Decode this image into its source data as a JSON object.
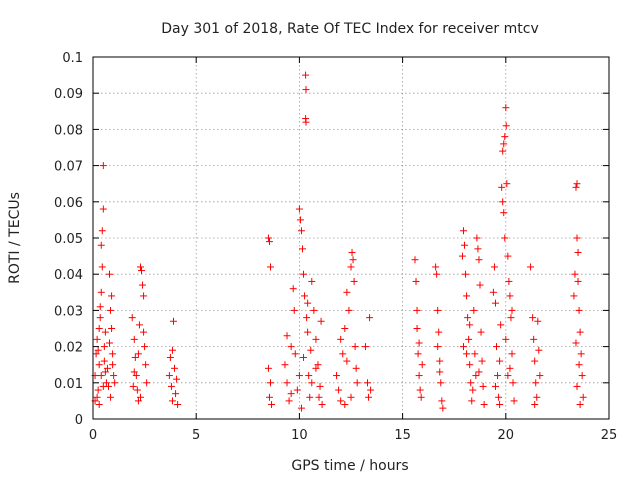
{
  "chart_data": {
    "type": "scatter",
    "title": "Day 301 of 2018, Rate Of TEC Index for receiver mtcv",
    "xlabel": "GPS time / hours",
    "ylabel": "ROTI / TECUs",
    "xlim": [
      0,
      25
    ],
    "ylim": [
      0,
      0.1
    ],
    "xticks": [
      0,
      5,
      10,
      15,
      20,
      25
    ],
    "yticks": [
      0,
      0.01,
      0.02,
      0.03,
      0.04,
      0.05,
      0.06,
      0.07,
      0.08,
      0.09,
      0.1
    ],
    "xtick_labels": [
      "0",
      "5",
      "10",
      "15",
      "20",
      "25"
    ],
    "ytick_labels": [
      "0",
      "0.01",
      "0.02",
      "0.03",
      "0.04",
      "0.05",
      "0.06",
      "0.07",
      "0.08",
      "0.09",
      "0.1"
    ],
    "grid": true,
    "marker": "plus",
    "color": "#ff0000",
    "series": [
      {
        "name": "ROTI",
        "points": [
          [
            0.1,
            0.012
          ],
          [
            0.15,
            0.018
          ],
          [
            0.2,
            0.022
          ],
          [
            0.25,
            0.008
          ],
          [
            0.3,
            0.015
          ],
          [
            0.35,
            0.028
          ],
          [
            0.4,
            0.035
          ],
          [
            0.45,
            0.042
          ],
          [
            0.5,
            0.07
          ],
          [
            0.5,
            0.058
          ],
          [
            0.45,
            0.052
          ],
          [
            0.4,
            0.048
          ],
          [
            0.35,
            0.031
          ],
          [
            0.3,
            0.025
          ],
          [
            0.55,
            0.02
          ],
          [
            0.6,
            0.013
          ],
          [
            0.65,
            0.01
          ],
          [
            0.2,
            0.006
          ],
          [
            0.1,
            0.005
          ],
          [
            0.3,
            0.004
          ],
          [
            0.5,
            0.009
          ],
          [
            0.55,
            0.016
          ],
          [
            0.6,
            0.024
          ],
          [
            0.4,
            0.012
          ],
          [
            0.25,
            0.019
          ],
          [
            0.8,
            0.04
          ],
          [
            0.85,
            0.03
          ],
          [
            0.9,
            0.025
          ],
          [
            0.95,
            0.018
          ],
          [
            1.0,
            0.012
          ],
          [
            0.75,
            0.009
          ],
          [
            0.85,
            0.006
          ],
          [
            0.95,
            0.015
          ],
          [
            0.8,
            0.021
          ],
          [
            0.9,
            0.034
          ],
          [
            1.05,
            0.01
          ],
          [
            0.7,
            0.014
          ],
          [
            1.9,
            0.028
          ],
          [
            2.0,
            0.022
          ],
          [
            2.05,
            0.017
          ],
          [
            2.1,
            0.012
          ],
          [
            2.15,
            0.008
          ],
          [
            2.2,
            0.005
          ],
          [
            2.25,
            0.026
          ],
          [
            2.3,
            0.042
          ],
          [
            2.35,
            0.041
          ],
          [
            2.4,
            0.037
          ],
          [
            2.45,
            0.034
          ],
          [
            2.5,
            0.02
          ],
          [
            2.55,
            0.015
          ],
          [
            2.6,
            0.01
          ],
          [
            2.2,
            0.018
          ],
          [
            2.0,
            0.013
          ],
          [
            2.3,
            0.006
          ],
          [
            2.45,
            0.024
          ],
          [
            1.95,
            0.009
          ],
          [
            3.7,
            0.012
          ],
          [
            3.75,
            0.017
          ],
          [
            3.8,
            0.009
          ],
          [
            3.85,
            0.005
          ],
          [
            3.9,
            0.027
          ],
          [
            3.95,
            0.014
          ],
          [
            4.0,
            0.007
          ],
          [
            4.05,
            0.011
          ],
          [
            4.1,
            0.004
          ],
          [
            3.85,
            0.019
          ],
          [
            8.5,
            0.05
          ],
          [
            8.55,
            0.049
          ],
          [
            8.6,
            0.042
          ],
          [
            8.5,
            0.014
          ],
          [
            8.6,
            0.01
          ],
          [
            8.55,
            0.006
          ],
          [
            8.65,
            0.004
          ],
          [
            9.3,
            0.015
          ],
          [
            9.4,
            0.01
          ],
          [
            9.5,
            0.005
          ],
          [
            9.6,
            0.02
          ],
          [
            9.7,
            0.036
          ],
          [
            9.75,
            0.03
          ],
          [
            9.8,
            0.018
          ],
          [
            9.9,
            0.008
          ],
          [
            10.0,
            0.058
          ],
          [
            10.05,
            0.055
          ],
          [
            10.1,
            0.052
          ],
          [
            10.15,
            0.047
          ],
          [
            10.2,
            0.04
          ],
          [
            10.25,
            0.034
          ],
          [
            10.3,
            0.095
          ],
          [
            10.32,
            0.091
          ],
          [
            10.3,
            0.083
          ],
          [
            10.32,
            0.082
          ],
          [
            10.35,
            0.028
          ],
          [
            10.4,
            0.024
          ],
          [
            10.45,
            0.012
          ],
          [
            10.5,
            0.006
          ],
          [
            10.55,
            0.019
          ],
          [
            10.6,
            0.038
          ],
          [
            10.7,
            0.03
          ],
          [
            10.8,
            0.022
          ],
          [
            10.9,
            0.015
          ],
          [
            11.0,
            0.009
          ],
          [
            11.1,
            0.004
          ],
          [
            10.0,
            0.012
          ],
          [
            9.6,
            0.007
          ],
          [
            10.2,
            0.017
          ],
          [
            10.6,
            0.01
          ],
          [
            10.8,
            0.014
          ],
          [
            9.4,
            0.023
          ],
          [
            10.4,
            0.032
          ],
          [
            11.05,
            0.027
          ],
          [
            10.95,
            0.006
          ],
          [
            10.1,
            0.003
          ],
          [
            11.8,
            0.012
          ],
          [
            11.9,
            0.008
          ],
          [
            12.0,
            0.005
          ],
          [
            12.1,
            0.018
          ],
          [
            12.2,
            0.025
          ],
          [
            12.3,
            0.035
          ],
          [
            12.4,
            0.03
          ],
          [
            12.5,
            0.042
          ],
          [
            12.55,
            0.046
          ],
          [
            12.6,
            0.044
          ],
          [
            12.65,
            0.038
          ],
          [
            12.7,
            0.02
          ],
          [
            12.75,
            0.014
          ],
          [
            12.8,
            0.01
          ],
          [
            12.5,
            0.006
          ],
          [
            12.3,
            0.016
          ],
          [
            12.0,
            0.022
          ],
          [
            13.2,
            0.02
          ],
          [
            13.3,
            0.01
          ],
          [
            13.35,
            0.006
          ],
          [
            13.4,
            0.028
          ],
          [
            13.45,
            0.008
          ],
          [
            12.2,
            0.004
          ],
          [
            15.6,
            0.044
          ],
          [
            15.65,
            0.038
          ],
          [
            15.7,
            0.025
          ],
          [
            15.75,
            0.018
          ],
          [
            15.8,
            0.012
          ],
          [
            15.85,
            0.008
          ],
          [
            15.9,
            0.006
          ],
          [
            15.95,
            0.015
          ],
          [
            15.7,
            0.03
          ],
          [
            15.8,
            0.021
          ],
          [
            16.6,
            0.042
          ],
          [
            16.65,
            0.04
          ],
          [
            16.7,
            0.03
          ],
          [
            16.75,
            0.024
          ],
          [
            16.8,
            0.016
          ],
          [
            16.85,
            0.01
          ],
          [
            16.9,
            0.005
          ],
          [
            16.95,
            0.003
          ],
          [
            16.7,
            0.02
          ],
          [
            16.8,
            0.013
          ],
          [
            17.9,
            0.045
          ],
          [
            17.95,
            0.052
          ],
          [
            18.0,
            0.048
          ],
          [
            18.05,
            0.04
          ],
          [
            18.1,
            0.034
          ],
          [
            18.15,
            0.028
          ],
          [
            18.2,
            0.022
          ],
          [
            18.25,
            0.015
          ],
          [
            18.3,
            0.01
          ],
          [
            18.35,
            0.005
          ],
          [
            18.45,
            0.03
          ],
          [
            18.5,
            0.018
          ],
          [
            18.55,
            0.012
          ],
          [
            18.6,
            0.05
          ],
          [
            18.65,
            0.047
          ],
          [
            18.7,
            0.044
          ],
          [
            18.75,
            0.037
          ],
          [
            18.8,
            0.024
          ],
          [
            18.85,
            0.016
          ],
          [
            18.9,
            0.009
          ],
          [
            18.95,
            0.004
          ],
          [
            18.1,
            0.018
          ],
          [
            18.4,
            0.008
          ],
          [
            18.7,
            0.013
          ],
          [
            17.95,
            0.02
          ],
          [
            18.25,
            0.026
          ],
          [
            19.4,
            0.035
          ],
          [
            19.45,
            0.042
          ],
          [
            19.5,
            0.032
          ],
          [
            19.55,
            0.02
          ],
          [
            19.6,
            0.012
          ],
          [
            19.65,
            0.006
          ],
          [
            19.7,
            0.016
          ],
          [
            19.75,
            0.026
          ],
          [
            19.8,
            0.064
          ],
          [
            19.85,
            0.06
          ],
          [
            19.9,
            0.057
          ],
          [
            19.95,
            0.05
          ],
          [
            19.85,
            0.074
          ],
          [
            19.9,
            0.076
          ],
          [
            19.95,
            0.078
          ],
          [
            20.0,
            0.086
          ],
          [
            20.02,
            0.081
          ],
          [
            20.05,
            0.065
          ],
          [
            20.1,
            0.045
          ],
          [
            20.15,
            0.038
          ],
          [
            20.2,
            0.034
          ],
          [
            20.25,
            0.028
          ],
          [
            20.3,
            0.018
          ],
          [
            20.35,
            0.01
          ],
          [
            20.4,
            0.005
          ],
          [
            19.7,
            0.004
          ],
          [
            20.0,
            0.022
          ],
          [
            20.2,
            0.014
          ],
          [
            19.5,
            0.009
          ],
          [
            20.3,
            0.03
          ],
          [
            20.1,
            0.012
          ],
          [
            21.2,
            0.042
          ],
          [
            21.3,
            0.028
          ],
          [
            21.35,
            0.022
          ],
          [
            21.4,
            0.016
          ],
          [
            21.45,
            0.01
          ],
          [
            21.5,
            0.006
          ],
          [
            21.55,
            0.027
          ],
          [
            21.6,
            0.019
          ],
          [
            21.65,
            0.012
          ],
          [
            21.4,
            0.004
          ],
          [
            23.3,
            0.034
          ],
          [
            23.35,
            0.04
          ],
          [
            23.4,
            0.064
          ],
          [
            23.45,
            0.065
          ],
          [
            23.45,
            0.05
          ],
          [
            23.5,
            0.046
          ],
          [
            23.5,
            0.038
          ],
          [
            23.55,
            0.03
          ],
          [
            23.6,
            0.024
          ],
          [
            23.65,
            0.018
          ],
          [
            23.7,
            0.012
          ],
          [
            23.75,
            0.006
          ],
          [
            23.45,
            0.009
          ],
          [
            23.55,
            0.015
          ],
          [
            23.6,
            0.004
          ],
          [
            23.4,
            0.021
          ]
        ]
      }
    ]
  }
}
